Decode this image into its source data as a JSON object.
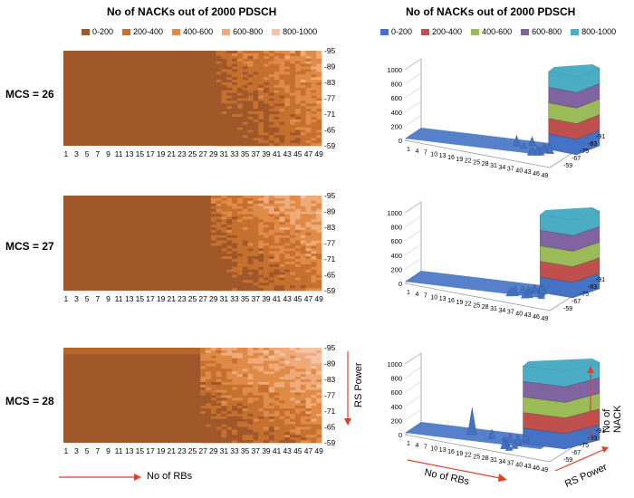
{
  "left_title": "No of NACKs out of 2000 PDSCH",
  "right_title": "No of NACKs out of 2000 PDSCH",
  "legend_left": [
    {
      "label": "0-200",
      "color": "#a0582a"
    },
    {
      "label": "200-400",
      "color": "#c6702f"
    },
    {
      "label": "400-600",
      "color": "#e08a48"
    },
    {
      "label": "600-800",
      "color": "#eeaa78"
    },
    {
      "label": "800-1000",
      "color": "#f4c4a6"
    }
  ],
  "legend_right": [
    {
      "label": "0-200",
      "color": "#4472c4"
    },
    {
      "label": "200-400",
      "color": "#c0504d"
    },
    {
      "label": "400-600",
      "color": "#9bbb59"
    },
    {
      "label": "600-800",
      "color": "#8064a2"
    },
    {
      "label": "800-1000",
      "color": "#4bacc6"
    }
  ],
  "rows": [
    {
      "label": "MCS = 26"
    },
    {
      "label": "MCS = 27"
    },
    {
      "label": "MCS = 28"
    }
  ],
  "heat_x_ticks": [
    "1",
    "3",
    "5",
    "7",
    "9",
    "11",
    "13",
    "15",
    "17",
    "19",
    "21",
    "23",
    "25",
    "27",
    "29",
    "31",
    "33",
    "35",
    "37",
    "39",
    "41",
    "43",
    "45",
    "47",
    "49"
  ],
  "heat_y_ticks": [
    "-95",
    "-89",
    "-83",
    "-77",
    "-71",
    "-65",
    "-59"
  ],
  "surf_x_ticks": [
    "1",
    "4",
    "7",
    "10",
    "13",
    "16",
    "19",
    "22",
    "25",
    "28",
    "31",
    "34",
    "37",
    "40",
    "43",
    "46",
    "49"
  ],
  "surf_z_ticks": [
    "0",
    "200",
    "400",
    "600",
    "800",
    "1000"
  ],
  "surf_y_ticks": [
    "-59",
    "-67",
    "-75",
    "-83",
    "-91"
  ],
  "annotations": {
    "rs_power": "RS Power",
    "no_of_rbs": "No of RBs",
    "no_of_nack": "No of NACK"
  },
  "chart_data": [
    {
      "type": "heatmap",
      "title": "No of NACKs out of 2000 PDSCH",
      "panel": "MCS = 26",
      "xlabel": "No of RBs",
      "ylabel": "RS Power",
      "x_range": [
        1,
        49
      ],
      "y_range": [
        -95,
        -59
      ],
      "series": [
        {
          "name": "0-200",
          "region": "RBs 1-29 all RS power"
        },
        {
          "name": "200-1000",
          "region": "RBs 30-49 mixed, higher near -95"
        }
      ],
      "nack_transition_rb": 30
    },
    {
      "type": "heatmap",
      "title": "No of NACKs out of 2000 PDSCH",
      "panel": "MCS = 27",
      "xlabel": "No of RBs",
      "ylabel": "RS Power",
      "x_range": [
        1,
        49
      ],
      "y_range": [
        -95,
        -59
      ],
      "nack_transition_rb": 29
    },
    {
      "type": "heatmap",
      "title": "No of NACKs out of 2000 PDSCH",
      "panel": "MCS = 28",
      "xlabel": "No of RBs",
      "ylabel": "RS Power",
      "x_range": [
        1,
        49
      ],
      "y_range": [
        -95,
        -59
      ],
      "nack_transition_rb": 27
    },
    {
      "type": "area",
      "title": "No of NACKs out of 2000 PDSCH",
      "panel": "MCS = 26 (3D surface)",
      "zlim": [
        0,
        1000
      ],
      "peak_rb_range": [
        46,
        49
      ],
      "peak_value": 1000
    },
    {
      "type": "area",
      "title": "No of NACKs out of 2000 PDSCH",
      "panel": "MCS = 27 (3D surface)",
      "zlim": [
        0,
        1000
      ],
      "peak_rb_range": [
        43,
        49
      ],
      "peak_value": 1000
    },
    {
      "type": "area",
      "title": "No of NACKs out of 2000 PDSCH",
      "panel": "MCS = 28 (3D surface)",
      "zlim": [
        0,
        1000
      ],
      "peak_rb_range": [
        37,
        49
      ],
      "peak_value": 1000,
      "spike_rb": 19
    }
  ]
}
